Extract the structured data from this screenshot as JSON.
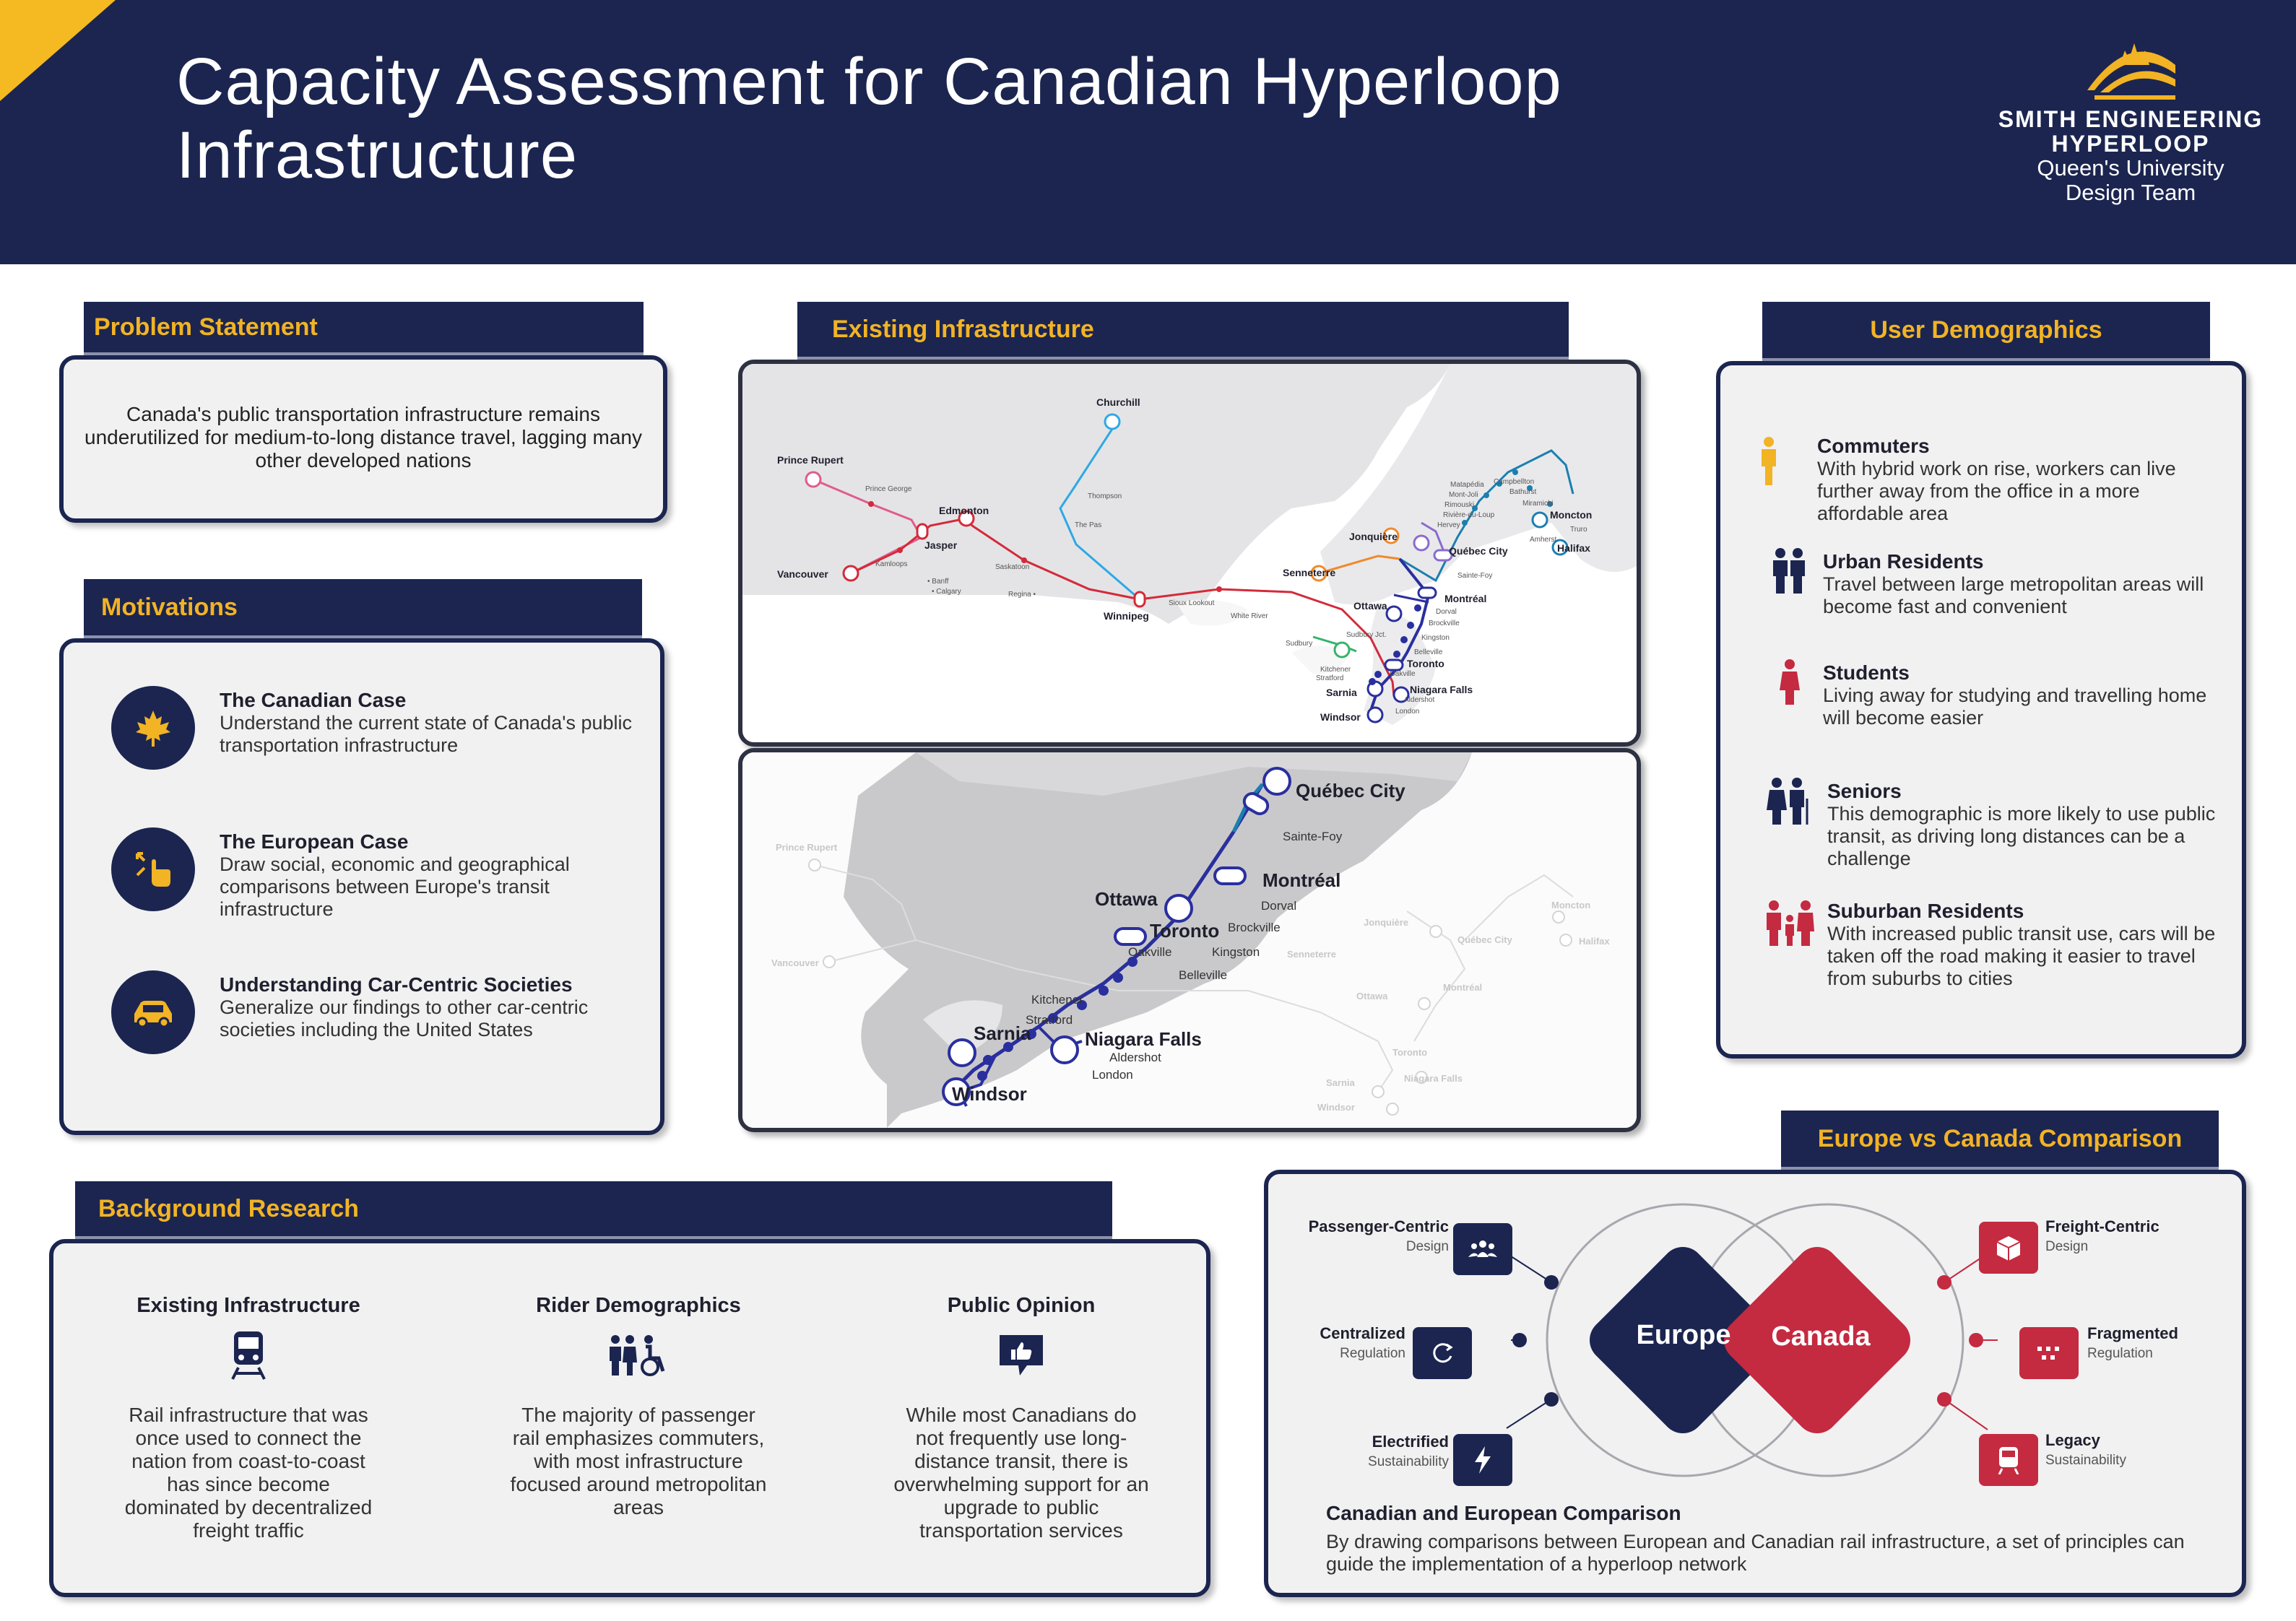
{
  "header": {
    "title_line1": "Capacity Assessment for Canadian Hyperloop",
    "title_line2": "Infrastructure",
    "logo_line1": "SMITH ENGINEERING",
    "logo_line2": "HYPERLOOP",
    "logo_line3": "Queen's University",
    "logo_line4": "Design Team"
  },
  "problem": {
    "heading": "Problem Statement",
    "text": "Canada's public transportation infrastructure remains underutilized for medium-to-long distance travel, lagging many other developed nations"
  },
  "motivations": {
    "heading": "Motivations",
    "items": [
      {
        "title": "The Canadian Case",
        "desc": "Understand the current state of Canada's public transportation infrastructure",
        "icon": "maple-leaf-icon"
      },
      {
        "title": "The European Case",
        "desc": "Draw social, economic and geographical comparisons between Europe's transit infrastructure",
        "icon": "tap-hand-icon"
      },
      {
        "title": "Understanding Car-Centric Societies",
        "desc": "Generalize our findings to other car-centric societies including the United States",
        "icon": "car-icon"
      }
    ]
  },
  "existing": {
    "heading": "Existing Infrastructure",
    "map1": {
      "cities_major": [
        "Churchill",
        "Prince Rupert",
        "Edmonton",
        "Jasper",
        "Vancouver",
        "Winnipeg",
        "Jonquière",
        "Senneterre",
        "Québec City",
        "Moncton",
        "Halifax",
        "Montréal",
        "Ottawa",
        "Toronto",
        "Sarnia",
        "Niagara Falls",
        "Windsor"
      ],
      "cities_minor": [
        "Prince George",
        "Thompson",
        "The Pas",
        "Saskatoon",
        "Kamloops",
        "Banff",
        "Calgary",
        "Regina",
        "Sioux Lookout",
        "White River",
        "Sudbury",
        "Sudbury Jct.",
        "Kitchener",
        "Stratford",
        "Oakville",
        "Aldershot",
        "London",
        "Dorval",
        "Brockville",
        "Kingston",
        "Belleville",
        "Hervey",
        "Rivière-du-Loup",
        "Rimouski",
        "Mont-Joli",
        "Matapédia",
        "Campbellton",
        "Bathurst",
        "Miramichi",
        "Amherst",
        "Truro",
        "Sainte-Foy"
      ]
    },
    "map2": {
      "cities": [
        "Québec City",
        "Sainte-Foy",
        "Montréal",
        "Ottawa",
        "Dorval",
        "Brockville",
        "Kingston",
        "Belleville",
        "Toronto",
        "Kitchener",
        "Stratford",
        "Oakville",
        "Sarnia",
        "Niagara Falls",
        "Aldershot",
        "London",
        "Windsor"
      ]
    }
  },
  "demographics": {
    "heading": "User Demographics",
    "items": [
      {
        "title": "Commuters",
        "desc": "With hybrid work on rise, workers can live further away from the office in a more affordable area",
        "icon": "commuter-icon",
        "color": "#f2b324"
      },
      {
        "title": "Urban Residents",
        "desc": "Travel between large metropolitan areas will become fast and convenient",
        "icon": "urban-residents-icon",
        "color": "#1b2550"
      },
      {
        "title": "Students",
        "desc": "Living away for studying and travelling home will become easier",
        "icon": "student-icon",
        "color": "#c42a40"
      },
      {
        "title": "Seniors",
        "desc": "This demographic is more likely to use public transit, as driving long distances can be a challenge",
        "icon": "seniors-icon",
        "color": "#1b2550"
      },
      {
        "title": "Suburban Residents",
        "desc": "With increased public transit use, cars will be taken off the road making it easier to travel from suburbs to cities",
        "icon": "family-icon",
        "color": "#c42a40"
      }
    ]
  },
  "background": {
    "heading": "Background Research",
    "columns": [
      {
        "title": "Existing Infrastructure",
        "desc": "Rail infrastructure that was once used to connect the nation from coast-to-coast has since become dominated by decentralized freight traffic",
        "icon": "train-icon"
      },
      {
        "title": "Rider Demographics",
        "desc": "The majority of passenger rail emphasizes commuters, with most infrastructure focused around metropolitan areas",
        "icon": "people-icon"
      },
      {
        "title": "Public Opinion",
        "desc": "While most Canadians do not frequently use long-distance transit, there is overwhelming support for an upgrade to public transportation services",
        "icon": "thumbs-up-icon"
      }
    ]
  },
  "comparison": {
    "heading": "Europe vs Canada Comparison",
    "europe": "Europe",
    "canada": "Canada",
    "left": [
      {
        "title": "Passenger-Centric",
        "sub": "Design",
        "icon": "group-icon"
      },
      {
        "title": "Centralized",
        "sub": "Regulation",
        "icon": "cycle-icon"
      },
      {
        "title": "Electrified",
        "sub": "Sustainability",
        "icon": "lightning-icon"
      }
    ],
    "right": [
      {
        "title": "Freight-Centric",
        "sub": "Design",
        "icon": "box-icon"
      },
      {
        "title": "Fragmented",
        "sub": "Regulation",
        "icon": "fragment-icon"
      },
      {
        "title": "Legacy",
        "sub": "Sustainability",
        "icon": "train-icon"
      }
    ],
    "summary_title": "Canadian and European Comparison",
    "summary_text": "By drawing comparisons between European and Canadian rail infrastructure, a set of principles can guide the implementation of a hyperloop network"
  },
  "colors": {
    "navy": "#1b2550",
    "gold": "#f2b324",
    "red": "#c42a40",
    "panel": "#f1f1f2"
  }
}
